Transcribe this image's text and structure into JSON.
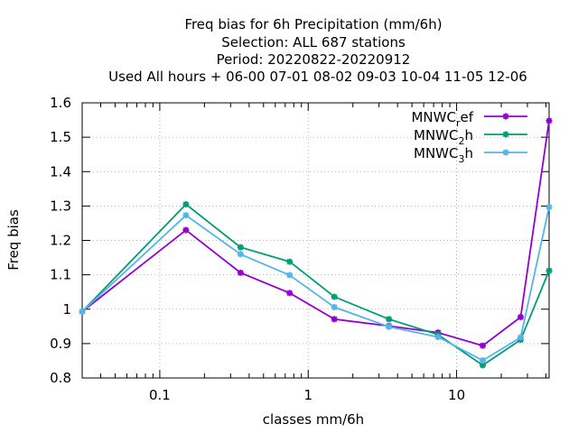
{
  "chart_data": {
    "type": "line",
    "title_lines": [
      "Freq bias  for 6h Precipitation (mm/6h)",
      "Selection: ALL    687 stations",
      "Period: 20220822-20220912",
      "Used  All hours  + 06-00 07-01 08-02 09-03 10-04 11-05 12-06"
    ],
    "xlabel": "classes mm/6h",
    "ylabel": "Freq bias",
    "x_scale": "log",
    "xlim": [
      0.03,
      42
    ],
    "ylim": [
      0.8,
      1.6
    ],
    "x_ticks": [
      {
        "value": 0.1,
        "label": "0.1"
      },
      {
        "value": 1,
        "label": "1"
      },
      {
        "value": 10,
        "label": "10"
      }
    ],
    "y_ticks": [
      {
        "value": 0.8,
        "label": "0.8"
      },
      {
        "value": 0.9,
        "label": "0.9"
      },
      {
        "value": 1.0,
        "label": "1"
      },
      {
        "value": 1.1,
        "label": "1.1"
      },
      {
        "value": 1.2,
        "label": "1.2"
      },
      {
        "value": 1.3,
        "label": "1.3"
      },
      {
        "value": 1.4,
        "label": "1.4"
      },
      {
        "value": 1.5,
        "label": "1.5"
      },
      {
        "value": 1.6,
        "label": "1.6"
      }
    ],
    "grid": true,
    "legend_position": "top-right",
    "x": [
      0.03,
      0.15,
      0.35,
      0.75,
      1.5,
      3.5,
      7.5,
      15,
      27,
      42
    ],
    "series": [
      {
        "name_base": "MNWC",
        "name_sub": "r",
        "name_tail": "ef",
        "color": "#9400d3",
        "values": [
          0.993,
          1.23,
          1.106,
          1.047,
          0.971,
          0.951,
          0.932,
          0.894,
          0.977,
          1.548
        ]
      },
      {
        "name_base": "MNWC",
        "name_sub": "2",
        "name_tail": "h",
        "color": "#009e73",
        "values": [
          0.993,
          1.305,
          1.18,
          1.138,
          1.036,
          0.971,
          0.926,
          0.837,
          0.911,
          1.112
        ]
      },
      {
        "name_base": "MNWC",
        "name_sub": "3",
        "name_tail": "h",
        "color": "#56b4e9",
        "values": [
          0.993,
          1.273,
          1.16,
          1.099,
          1.006,
          0.949,
          0.919,
          0.851,
          0.918,
          1.297
        ]
      }
    ]
  }
}
